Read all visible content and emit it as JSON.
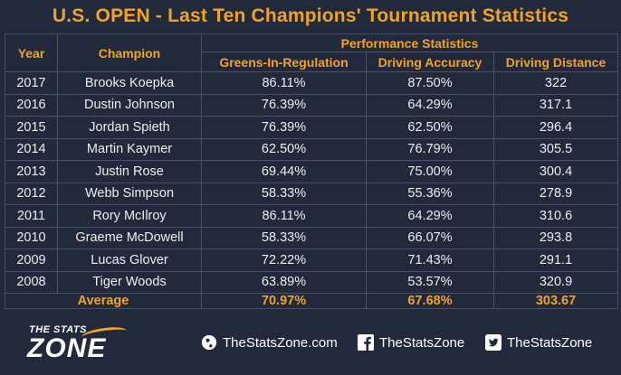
{
  "title": "U.S. OPEN -  Last Ten Champions' Tournament Statistics",
  "headers": {
    "year": "Year",
    "champion": "Champion",
    "group": "Performance Statistics",
    "gir": "Greens-In-Regulation",
    "accuracy": "Driving Accuracy",
    "distance": "Driving Distance"
  },
  "rows": [
    {
      "year": "2017",
      "champion": "Brooks Koepka",
      "gir": "86.11%",
      "accuracy": "87.50%",
      "distance": "322"
    },
    {
      "year": "2016",
      "champion": "Dustin Johnson",
      "gir": "76.39%",
      "accuracy": "64.29%",
      "distance": "317.1"
    },
    {
      "year": "2015",
      "champion": "Jordan Spieth",
      "gir": "76.39%",
      "accuracy": "62.50%",
      "distance": "296.4"
    },
    {
      "year": "2014",
      "champion": "Martin Kaymer",
      "gir": "62.50%",
      "accuracy": "76.79%",
      "distance": "305.5"
    },
    {
      "year": "2013",
      "champion": "Justin Rose",
      "gir": "69.44%",
      "accuracy": "75.00%",
      "distance": "300.4"
    },
    {
      "year": "2012",
      "champion": "Webb Simpson",
      "gir": "58.33%",
      "accuracy": "55.36%",
      "distance": "278.9"
    },
    {
      "year": "2011",
      "champion": "Rory McIlroy",
      "gir": "86.11%",
      "accuracy": "64.29%",
      "distance": "310.6"
    },
    {
      "year": "2010",
      "champion": "Graeme McDowell",
      "gir": "58.33%",
      "accuracy": "66.07%",
      "distance": "293.8"
    },
    {
      "year": "2009",
      "champion": "Lucas Glover",
      "gir": "72.22%",
      "accuracy": "71.43%",
      "distance": "291.1"
    },
    {
      "year": "2008",
      "champion": "Tiger Woods",
      "gir": "63.89%",
      "accuracy": "53.57%",
      "distance": "320.9"
    }
  ],
  "average": {
    "label": "Average",
    "gir": "70.97%",
    "accuracy": "67.68%",
    "distance": "303.67"
  },
  "footer": {
    "logo_line1": "THE STATS",
    "logo_line2": "ZONE",
    "website": "TheStatsZone.com",
    "facebook": "TheStatsZone",
    "twitter": "TheStatsZone",
    "website_icon": "globe-icon",
    "facebook_icon": "facebook-icon",
    "twitter_icon": "twitter-icon"
  },
  "colors": {
    "background": "#22293a",
    "accent": "#f0a324",
    "text": "#ecedf0",
    "border": "#4a5166"
  }
}
